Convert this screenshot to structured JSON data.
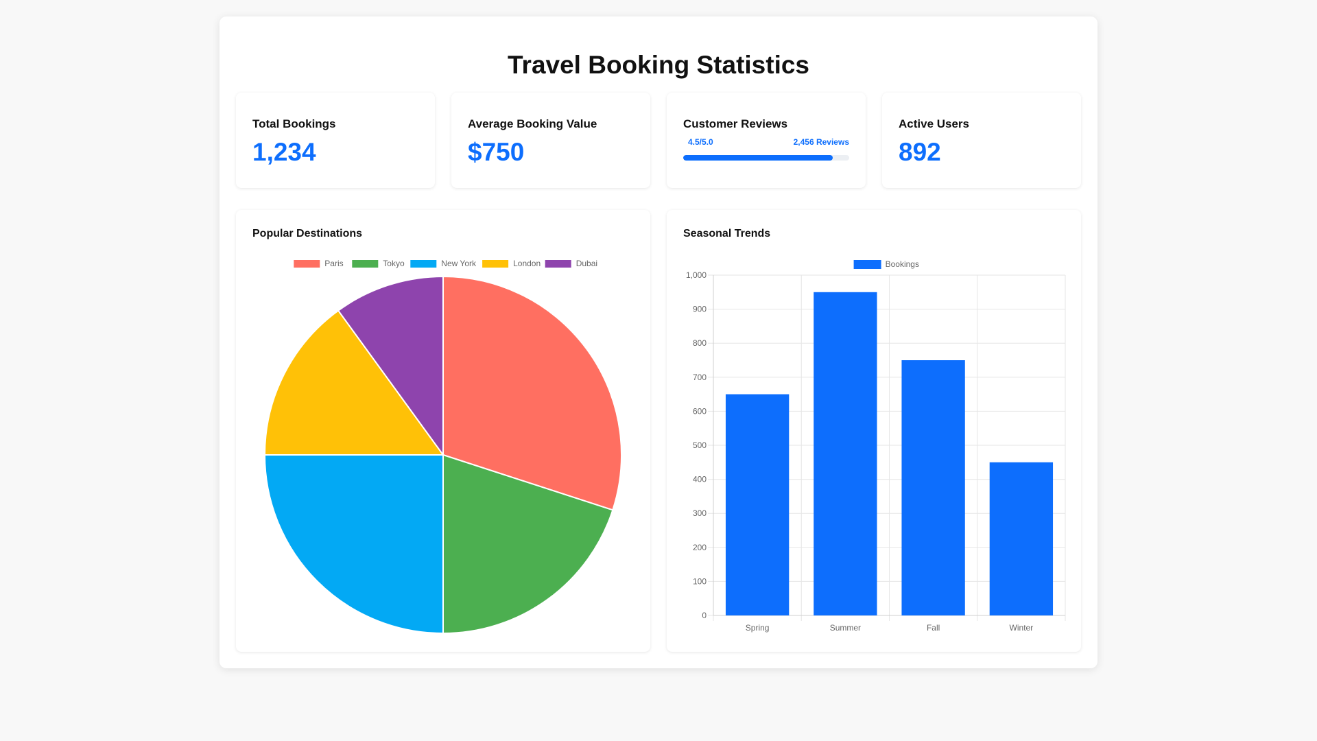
{
  "page": {
    "title": "Travel Booking Statistics"
  },
  "stats": [
    {
      "label": "Total Bookings",
      "value": "1,234"
    },
    {
      "label": "Average Booking Value",
      "value": "$750"
    },
    {
      "label": "Customer Reviews",
      "score": "4.5/5.0",
      "count": "2,456 Reviews",
      "progress": 0.9
    },
    {
      "label": "Active Users",
      "value": "892"
    }
  ],
  "charts": {
    "destinations_title": "Popular Destinations",
    "seasonal_title": "Seasonal Trends"
  },
  "colors": {
    "accent": "#0d6efd",
    "track": "#eceff3"
  },
  "chart_data": [
    {
      "type": "pie",
      "title": "Popular Destinations",
      "legend_position": "top",
      "categories": [
        "Paris",
        "Tokyo",
        "New York",
        "London",
        "Dubai"
      ],
      "values": [
        30,
        20,
        25,
        15,
        10
      ],
      "colors": [
        "#ff6f61",
        "#4caf50",
        "#03a9f4",
        "#ffc107",
        "#8e44ad"
      ]
    },
    {
      "type": "bar",
      "title": "Seasonal Trends",
      "legend_position": "top",
      "categories": [
        "Spring",
        "Summer",
        "Fall",
        "Winter"
      ],
      "series": [
        {
          "name": "Bookings",
          "values": [
            650,
            950,
            750,
            450
          ],
          "color": "#0d6efd"
        }
      ],
      "ylim": [
        0,
        1000
      ],
      "yticks": [
        0,
        100,
        200,
        300,
        400,
        500,
        600,
        700,
        800,
        900,
        1000
      ],
      "ytick_labels": [
        "0",
        "100",
        "200",
        "300",
        "400",
        "500",
        "600",
        "700",
        "800",
        "900",
        "1,000"
      ],
      "grid": true
    }
  ]
}
